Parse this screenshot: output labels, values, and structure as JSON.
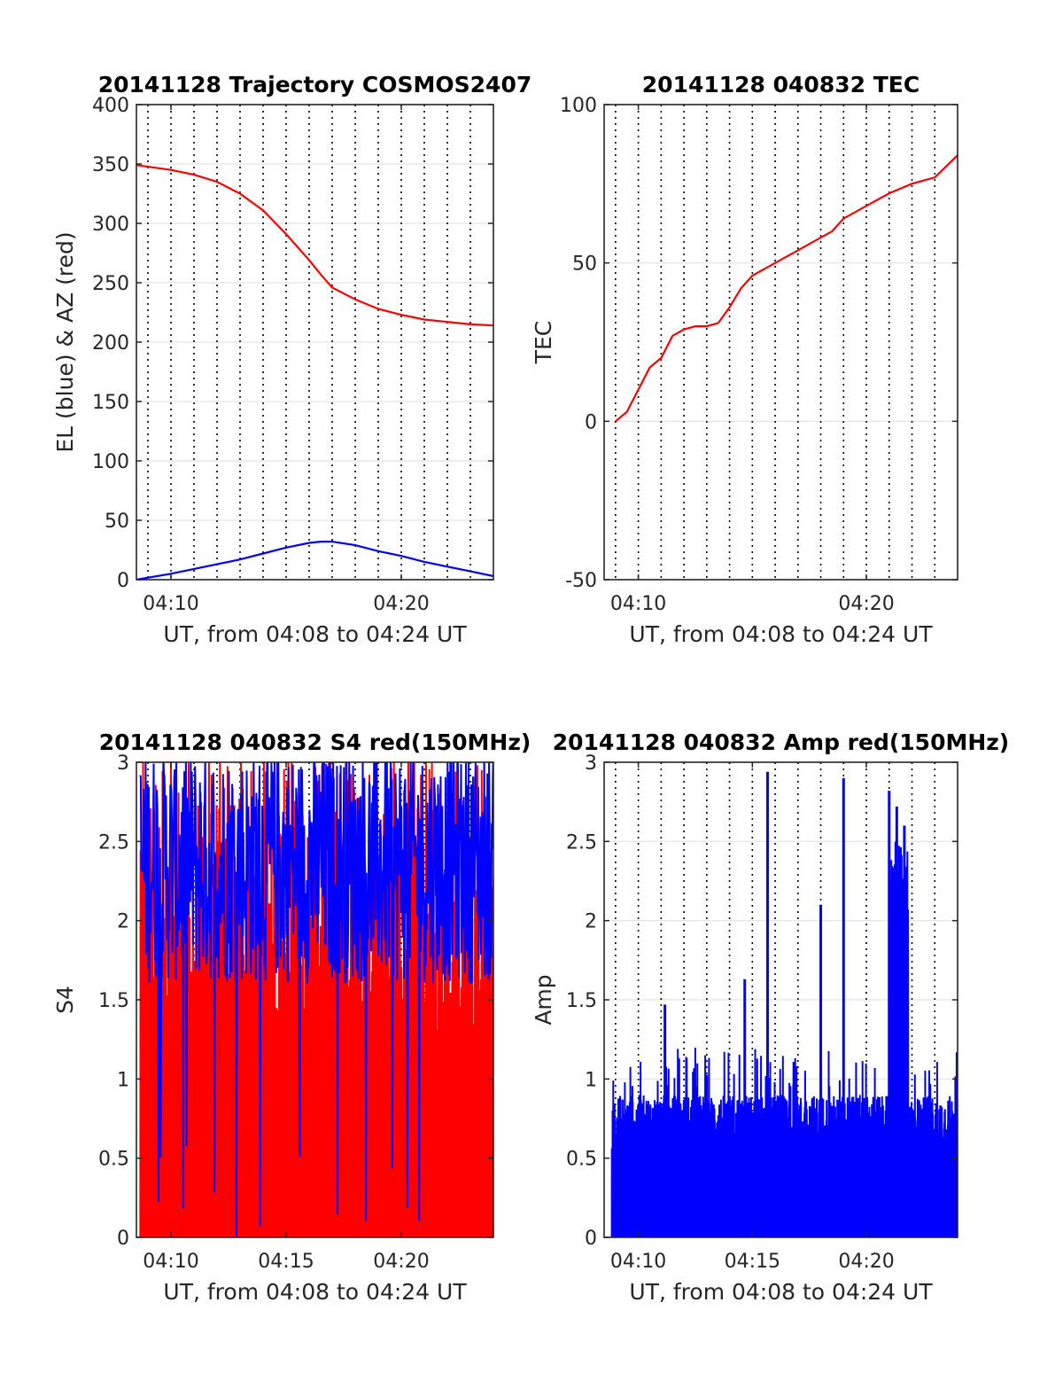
{
  "chart_data": [
    {
      "type": "line",
      "title": "20141128 Trajectory COSMOS2407",
      "xlabel": "UT, from 04:08 to 04:24 UT",
      "ylabel": "EL (blue) & AZ (red)",
      "xlim": [
        "04:08:30",
        "04:24:00"
      ],
      "ylim": [
        0,
        400
      ],
      "yticks": [
        0,
        50,
        100,
        150,
        200,
        250,
        300,
        350,
        400
      ],
      "xticks": [
        "04:10",
        "04:20"
      ],
      "grid": true,
      "series": [
        {
          "color": "#ff0000",
          "x": [
            "04:08:30",
            "04:10:00",
            "04:11:00",
            "04:12:00",
            "04:13:00",
            "04:14:00",
            "04:15:00",
            "04:16:00",
            "04:16:30",
            "04:17:00",
            "04:18:00",
            "04:19:00",
            "04:20:00",
            "04:21:00",
            "04:22:00",
            "04:23:00",
            "04:24:00"
          ],
          "values": [
            349,
            345,
            341,
            335,
            325,
            311,
            291,
            269,
            257,
            246,
            236,
            228,
            223,
            219,
            217,
            215,
            214
          ]
        },
        {
          "color": "#0000ff",
          "x": [
            "04:08:30",
            "04:10:00",
            "04:11:00",
            "04:12:00",
            "04:13:00",
            "04:14:00",
            "04:15:00",
            "04:16:00",
            "04:16:30",
            "04:17:00",
            "04:18:00",
            "04:19:00",
            "04:20:00",
            "04:21:00",
            "04:22:00",
            "04:23:00",
            "04:24:00"
          ],
          "values": [
            0,
            5,
            9,
            13,
            17,
            22,
            27,
            31,
            32,
            32,
            29,
            24,
            20,
            15,
            11,
            7,
            3
          ]
        }
      ]
    },
    {
      "type": "line",
      "title": "20141128 040832 TEC",
      "xlabel": "UT, from 04:08 to 04:24 UT",
      "ylabel": "TEC",
      "xlim": [
        "04:08:30",
        "04:24:00"
      ],
      "ylim": [
        -50,
        100
      ],
      "yticks": [
        -50,
        0,
        50,
        100
      ],
      "xticks": [
        "04:10",
        "04:20"
      ],
      "grid": true,
      "series": [
        {
          "color": "#ff0000",
          "x": [
            "04:09:00",
            "04:09:30",
            "04:10:00",
            "04:10:30",
            "04:11:00",
            "04:11:30",
            "04:12:00",
            "04:12:30",
            "04:13:00",
            "04:13:30",
            "04:14:00",
            "04:14:30",
            "04:15:00",
            "04:16:00",
            "04:17:00",
            "04:18:00",
            "04:18:30",
            "04:19:00",
            "04:20:00",
            "04:21:00",
            "04:22:00",
            "04:23:00",
            "04:24:00"
          ],
          "values": [
            0,
            3,
            10,
            17,
            20,
            27,
            29,
            30,
            30,
            31,
            36,
            42,
            46,
            50,
            54,
            58,
            60,
            64,
            68,
            72,
            75,
            77,
            84
          ]
        }
      ]
    },
    {
      "type": "line",
      "title": "20141128 040832 S4 red(150MHz)",
      "xlabel": "UT, from 04:08 to 04:24 UT",
      "ylabel": "S4",
      "xlim": [
        "04:08:30",
        "04:24:00"
      ],
      "ylim": [
        0,
        3
      ],
      "yticks": [
        0,
        0.5,
        1,
        1.5,
        2,
        2.5,
        3
      ],
      "xticks": [
        "04:10",
        "04:15",
        "04:20"
      ],
      "grid": true,
      "series": [
        {
          "color": "#ff0000",
          "x": [
            "04:08:40",
            "04:24:00"
          ],
          "values": [
            0,
            3
          ],
          "note": "dense noise 0–3"
        },
        {
          "color": "#0000ff",
          "x": [
            "04:08:40",
            "04:24:00"
          ],
          "values": [
            1.5,
            3
          ],
          "note": "dense noise mostly 1.5–3"
        }
      ]
    },
    {
      "type": "line",
      "title": "20141128 040832 Amp red(150MHz)",
      "xlabel": "UT, from 04:08 to 04:24 UT",
      "ylabel": "Amp",
      "xlim": [
        "04:08:30",
        "04:24:00"
      ],
      "ylim": [
        0,
        3
      ],
      "yticks": [
        0,
        0.5,
        1,
        1.5,
        2,
        2.5,
        3
      ],
      "xticks": [
        "04:10",
        "04:15",
        "04:20"
      ],
      "grid": true,
      "series": [
        {
          "color": "#0000ff",
          "peaks_x": [
            "04:11:10",
            "04:14:40",
            "04:15:40",
            "04:18:00",
            "04:19:00",
            "04:21:00",
            "04:21:20",
            "04:21:40"
          ],
          "peaks_y": [
            1.47,
            1.63,
            2.94,
            2.1,
            2.9,
            2.82,
            2.72,
            2.6
          ]
        }
      ]
    }
  ]
}
